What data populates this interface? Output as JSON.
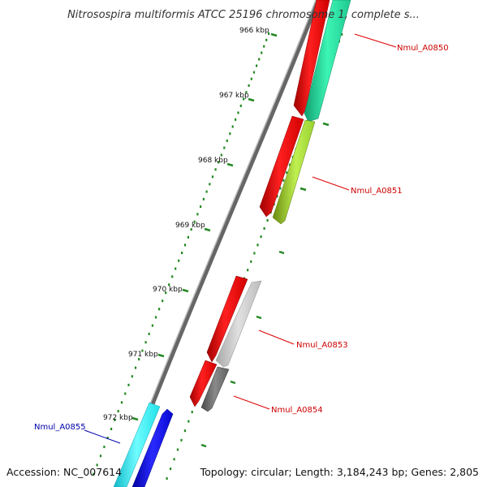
{
  "title": "Nitrosospira multiformis ATCC 25196 chromosome 1, complete s...",
  "ticks": [
    {
      "label": "966 kbp"
    },
    {
      "label": "967 kbp"
    },
    {
      "label": "968 kbp"
    },
    {
      "label": "969 kbp"
    },
    {
      "label": "970 kbp"
    },
    {
      "label": "971 kbp"
    },
    {
      "label": "972 kbp"
    }
  ],
  "genes": [
    {
      "name": "Nmul_A0850",
      "label_color": "#cc0000",
      "color": "#2ee8a8"
    },
    {
      "name": "Nmul_A0851",
      "label_color": "#cc0000",
      "color": "#a8e83a"
    },
    {
      "name": "Nmul_A0853",
      "label_color": "#cc0000",
      "color": "#c8c8c8"
    },
    {
      "name": "Nmul_A0854",
      "label_color": "#cc0000",
      "color": "#6e6e6e"
    },
    {
      "name": "Nmul_A0855",
      "label_color": "#0000aa",
      "color": "#22eeee"
    }
  ],
  "colors": {
    "cds_forward": "#ee0000",
    "tick_marks": "#228822",
    "backbone": "#888888",
    "reverse_blue": "#1010ee"
  },
  "footer": {
    "accession": "Accession: NC_007614",
    "summary": "Topology: circular; Length: 3,184,243 bp; Genes: 2,805"
  }
}
